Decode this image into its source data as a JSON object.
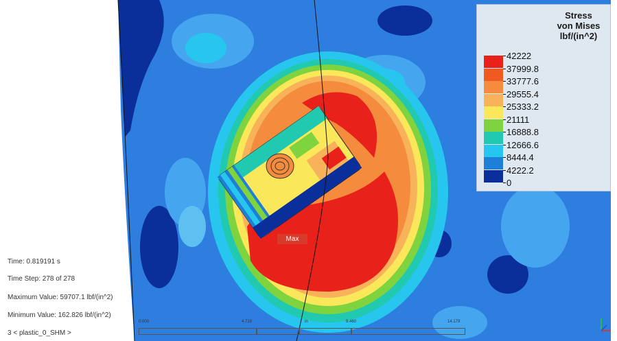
{
  "legend": {
    "title_line1": "Stress",
    "title_line2": "von Mises",
    "title_line3": "lbf/(in^2)",
    "levels": [
      {
        "value": "42222",
        "color": "#e8211a"
      },
      {
        "value": "37999.8",
        "color": "#f05a22"
      },
      {
        "value": "33777.6",
        "color": "#f58b3c"
      },
      {
        "value": "29555.4",
        "color": "#f8b35a"
      },
      {
        "value": "25333.2",
        "color": "#fbe85a"
      },
      {
        "value": "21111",
        "color": "#7ed33e"
      },
      {
        "value": "16888.8",
        "color": "#21c9b0"
      },
      {
        "value": "12666.6",
        "color": "#27c6ee"
      },
      {
        "value": "8444.4",
        "color": "#1e7fd8"
      },
      {
        "value": "4222.2",
        "color": "#0b2f9a"
      },
      {
        "value": "0",
        "color": "#0b2f9a"
      }
    ]
  },
  "info": {
    "time": "Time: 0.819191 s",
    "time_step": "Time Step:  278 of 278",
    "max_value": "Maximum Value: 59707.1 lbf/(in^2)",
    "min_value": "Minimum Value: 162.826 lbf/(in^2)",
    "design": "3 < plastic_0_SHM >"
  },
  "probe": {
    "max_label": "Max"
  },
  "ruler": {
    "labels": [
      "0.000",
      "4.719",
      "in",
      "9.460",
      "14.179"
    ]
  },
  "colors": {
    "background": "#ffffff",
    "model_base": "#2e7ee0",
    "dark_blue": "#0b2f9a",
    "cyan": "#27c6ee"
  }
}
